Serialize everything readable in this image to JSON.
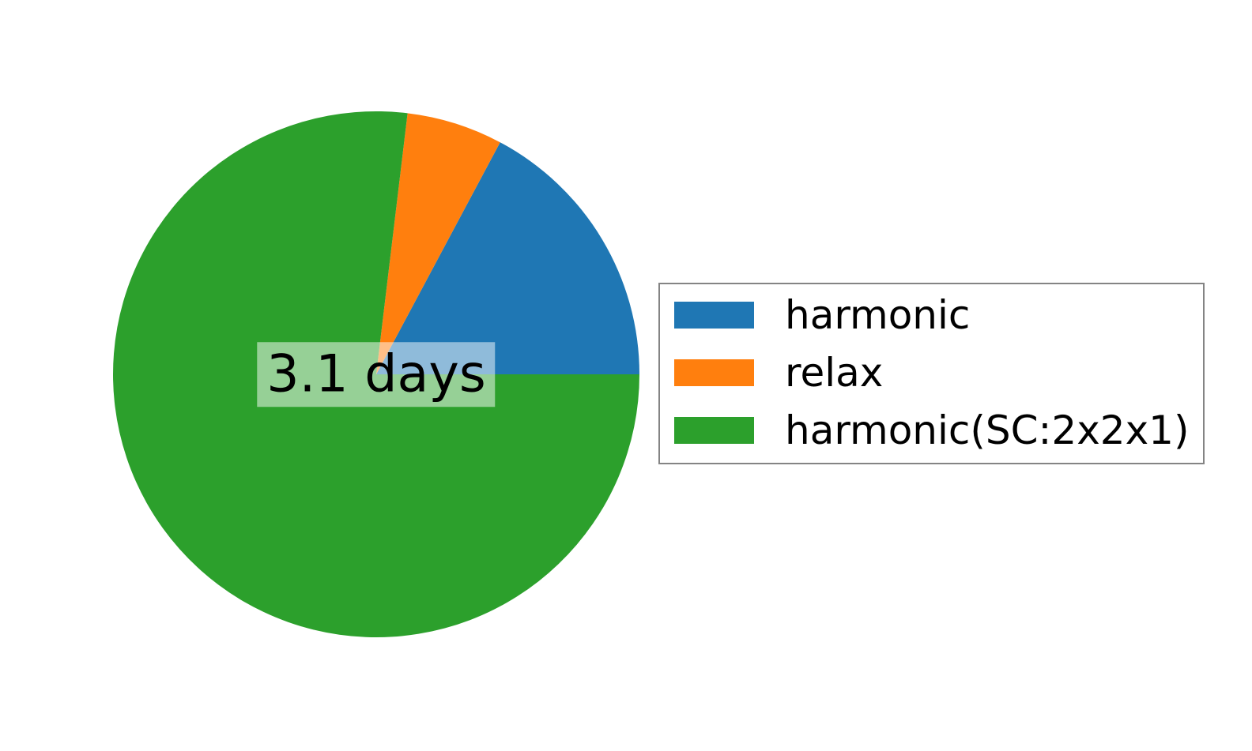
{
  "figure": {
    "background": "#ffffff"
  },
  "chart_data": {
    "type": "pie",
    "title": "",
    "center_label": "3.1 days",
    "start_angle_deg": 0,
    "direction": "counterclockwise",
    "legend_position": "right",
    "center_label_background": "rgba(255,255,255,0.5)",
    "slices": [
      {
        "label": "harmonic",
        "percent": 17.2,
        "color": "#1f77b4"
      },
      {
        "label": "relax",
        "percent": 5.9,
        "color": "#ff7f0e"
      },
      {
        "label": "harmonic(SC:2x2x1)",
        "percent": 76.9,
        "color": "#2ca02c"
      }
    ]
  },
  "legend": {
    "border_color": "#848484",
    "background": "#ffffff",
    "items": [
      {
        "label": "harmonic"
      },
      {
        "label": "relax"
      },
      {
        "label": "harmonic(SC:2x2x1)"
      }
    ]
  }
}
